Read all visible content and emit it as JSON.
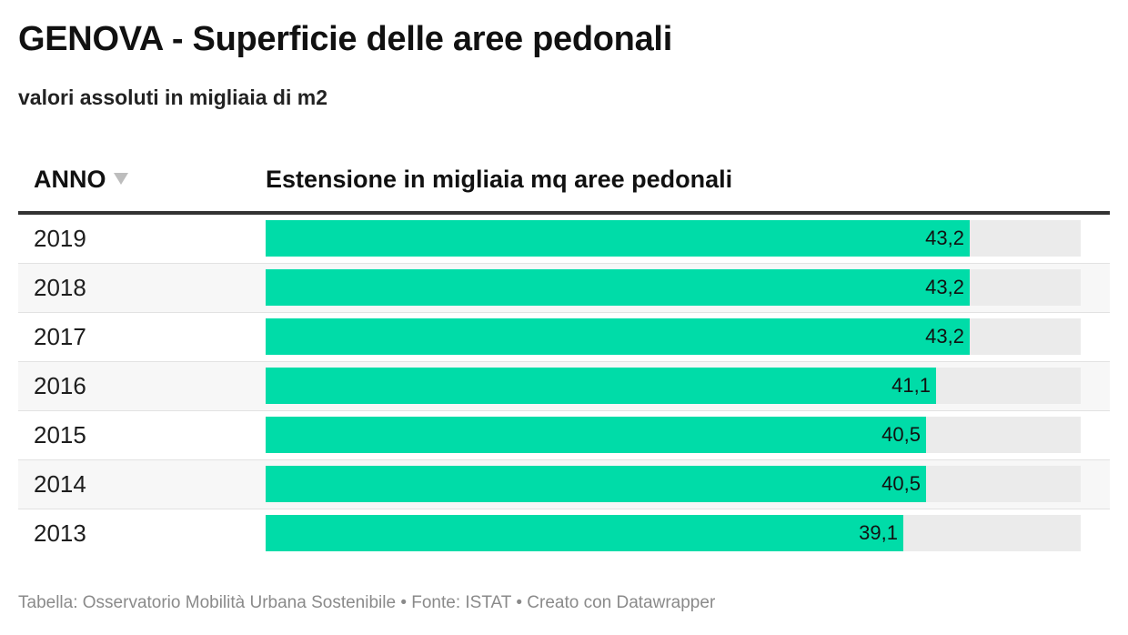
{
  "title": "GENOVA - Superficie delle aree pedonali",
  "subtitle": "valori assoluti in migliaia di m2",
  "header": {
    "year_label": "ANNO",
    "value_label": "Estensione in migliaia mq aree pedonali",
    "sort_icon": "triangle-down-icon"
  },
  "colors": {
    "bar": "#00dca8",
    "track": "#ebebeb"
  },
  "chart_data": {
    "type": "table",
    "title": "GENOVA - Superficie delle aree pedonali",
    "subtitle": "valori assoluti in migliaia di m2",
    "columns": [
      "ANNO",
      "Estensione in migliaia mq aree pedonali"
    ],
    "categories": [
      "2019",
      "2018",
      "2017",
      "2016",
      "2015",
      "2014",
      "2013"
    ],
    "values": [
      43.2,
      43.2,
      43.2,
      41.1,
      40.5,
      40.5,
      39.1
    ],
    "value_labels": [
      "43,2",
      "43,2",
      "43,2",
      "41,1",
      "40,5",
      "40,5",
      "39,1"
    ],
    "max": 50
  },
  "footer": "Tabella: Osservatorio Mobilità Urbana Sostenibile • Fonte: ISTAT • Creato con Datawrapper"
}
